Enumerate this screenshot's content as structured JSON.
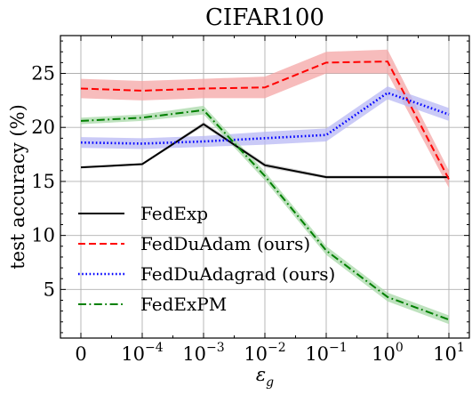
{
  "chart_data": {
    "type": "line",
    "title": "CIFAR100",
    "xlabel": "ε",
    "xlabel_sub": "g",
    "ylabel": "test accuracy (%)",
    "x_tick_labels": [
      {
        "base": "0",
        "exp": ""
      },
      {
        "base": "10",
        "exp": "−4"
      },
      {
        "base": "10",
        "exp": "−3"
      },
      {
        "base": "10",
        "exp": "−2"
      },
      {
        "base": "10",
        "exp": "−1"
      },
      {
        "base": "10",
        "exp": "0"
      },
      {
        "base": "10",
        "exp": "1"
      }
    ],
    "y_ticks": [
      5,
      10,
      15,
      20,
      25
    ],
    "ylim": [
      0.5,
      28.5
    ],
    "grid": true,
    "legend_position": "lower-left",
    "series": [
      {
        "name": "FedExp",
        "color": "#000000",
        "line_style": "solid",
        "values": [
          16.3,
          16.6,
          20.3,
          16.5,
          15.4,
          15.4,
          15.4
        ],
        "band": [
          0.1,
          0.1,
          0.2,
          0.2,
          0.15,
          0.15,
          0.15
        ]
      },
      {
        "name": "FedDuAdam (ours)",
        "color": "#ff0000",
        "band_color": "#f4a6a6",
        "line_style": "dashed",
        "values": [
          23.6,
          23.4,
          23.6,
          23.7,
          26.0,
          26.1,
          15.2
        ],
        "band": [
          0.9,
          0.9,
          0.9,
          1.0,
          1.0,
          1.1,
          0.8
        ]
      },
      {
        "name": "FedDuAdagrad (ours)",
        "color": "#0000ff",
        "band_color": "#b8b8f4",
        "line_style": "dotted",
        "values": [
          18.6,
          18.5,
          18.7,
          19.0,
          19.3,
          23.2,
          21.2
        ],
        "band": [
          0.5,
          0.5,
          0.5,
          0.6,
          0.6,
          0.6,
          0.6
        ]
      },
      {
        "name": "FedExPM",
        "color": "#008000",
        "band_color": "#a8d8a8",
        "line_style": "dashdot",
        "values": [
          20.6,
          20.9,
          21.6,
          15.5,
          8.6,
          4.3,
          2.2
        ],
        "band": [
          0.3,
          0.3,
          0.4,
          0.4,
          0.4,
          0.4,
          0.4
        ]
      }
    ]
  }
}
